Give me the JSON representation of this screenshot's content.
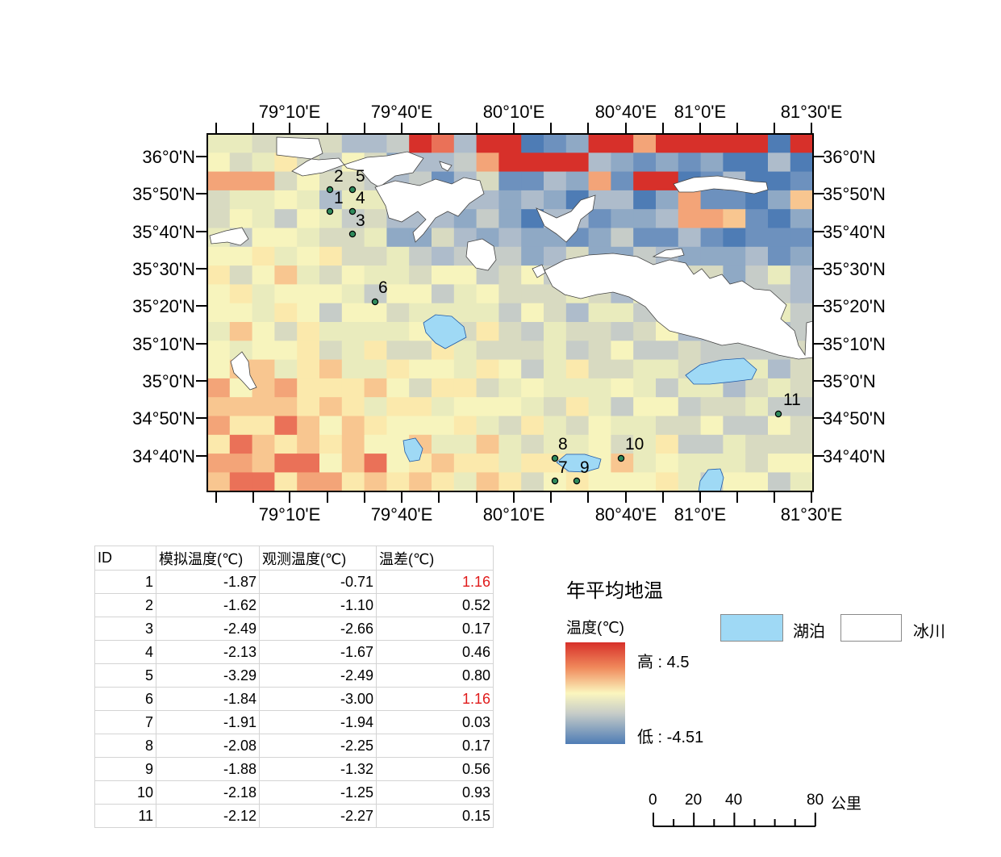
{
  "map": {
    "top_lon_labels": [
      "79°10'E",
      "79°40'E",
      "80°10'E",
      "80°40'E",
      "81°0'E",
      "81°30'E"
    ],
    "bottom_lon_labels": [
      "79°10'E",
      "79°40'E",
      "80°10'E",
      "80°40'E",
      "81°0'E",
      "81°30'E"
    ],
    "lat_labels": [
      "36°0'N",
      "35°50'N",
      "35°40'N",
      "35°30'N",
      "35°20'N",
      "35°10'N",
      "35°0'N",
      "34°50'N",
      "34°40'N"
    ],
    "stations": [
      "1",
      "2",
      "3",
      "4",
      "5",
      "6",
      "7",
      "8",
      "9",
      "10",
      "11"
    ],
    "colors": {
      "high": "#d7302a",
      "mid": "#fbf6be",
      "low": "#4e7cb5",
      "lake": "#9fd9f5",
      "glacier": "#ffffff"
    }
  },
  "table": {
    "headers": [
      "ID",
      "模拟温度(℃)",
      "观测温度(℃)",
      "温差(℃)"
    ],
    "rows": [
      {
        "id": "1",
        "sim": "-1.87",
        "obs": "-0.71",
        "diff": "1.16",
        "highlight": true
      },
      {
        "id": "2",
        "sim": "-1.62",
        "obs": "-1.10",
        "diff": "0.52",
        "highlight": false
      },
      {
        "id": "3",
        "sim": "-2.49",
        "obs": "-2.66",
        "diff": "0.17",
        "highlight": false
      },
      {
        "id": "4",
        "sim": "-2.13",
        "obs": "-1.67",
        "diff": "0.46",
        "highlight": false
      },
      {
        "id": "5",
        "sim": "-3.29",
        "obs": "-2.49",
        "diff": "0.80",
        "highlight": false
      },
      {
        "id": "6",
        "sim": "-1.84",
        "obs": "-3.00",
        "diff": "1.16",
        "highlight": true
      },
      {
        "id": "7",
        "sim": "-1.91",
        "obs": "-1.94",
        "diff": "0.03",
        "highlight": false
      },
      {
        "id": "8",
        "sim": "-2.08",
        "obs": "-2.25",
        "diff": "0.17",
        "highlight": false
      },
      {
        "id": "9",
        "sim": "-1.88",
        "obs": "-1.32",
        "diff": "0.56",
        "highlight": false
      },
      {
        "id": "10",
        "sim": "-2.18",
        "obs": "-1.25",
        "diff": "0.93",
        "highlight": false
      },
      {
        "id": "11",
        "sim": "-2.12",
        "obs": "-2.27",
        "diff": "0.15",
        "highlight": false
      }
    ],
    "highlight_color": "#e01b1b"
  },
  "legend": {
    "title": "年平均地温",
    "subtitle": "温度(℃)",
    "high_label": "高 : 4.5",
    "low_label": "低 : -4.51",
    "lake_label": "湖泊",
    "glacier_label": "冰川"
  },
  "scale_bar": {
    "ticks": [
      "0",
      "20",
      "40",
      "80"
    ],
    "unit": "公里"
  }
}
